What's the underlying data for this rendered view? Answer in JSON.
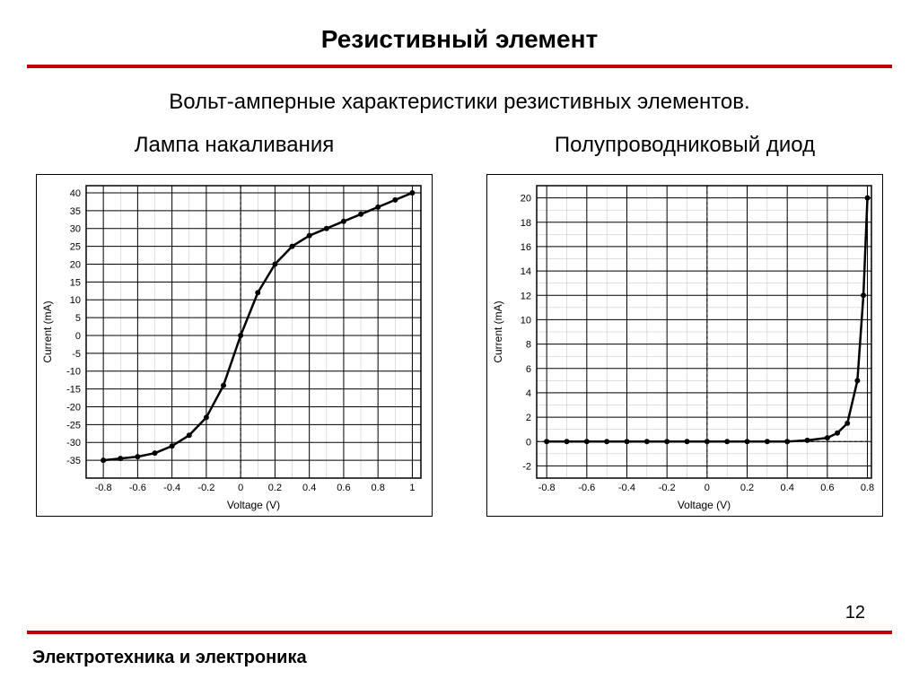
{
  "page": {
    "title": "Резистивный элемент",
    "subtitle": "Вольт-амперные характеристики резистивных элементов.",
    "footer": "Электротехника и электроника",
    "page_number": "12",
    "rule_color": "#c00000"
  },
  "chart_left": {
    "title": "Лампа накаливания",
    "type": "line",
    "xlabel": "Voltage (V)",
    "ylabel": "Current (mA)",
    "xlim": [
      -0.9,
      1.05
    ],
    "ylim": [
      -40,
      42
    ],
    "xtick_major": [
      -0.8,
      -0.6,
      -0.4,
      -0.2,
      0,
      0.2,
      0.4,
      0.6,
      0.8,
      1.0
    ],
    "ytick_major": [
      -35,
      -30,
      -25,
      -20,
      -15,
      -10,
      -5,
      0,
      5,
      10,
      15,
      20,
      25,
      30,
      35,
      40
    ],
    "minor_div_x": 0.1,
    "minor_div_y": 5,
    "grid_color_major": "#000000",
    "grid_color_minor": "#bfbfbf",
    "background_color": "#ffffff",
    "line_color": "#000000",
    "line_width": 2.5,
    "marker_color": "#000000",
    "marker_size": 3,
    "label_fontsize": 12,
    "tick_fontsize": 11,
    "data": [
      {
        "x": -0.8,
        "y": -35
      },
      {
        "x": -0.7,
        "y": -34.5
      },
      {
        "x": -0.6,
        "y": -34
      },
      {
        "x": -0.5,
        "y": -33
      },
      {
        "x": -0.4,
        "y": -31
      },
      {
        "x": -0.3,
        "y": -28
      },
      {
        "x": -0.2,
        "y": -23
      },
      {
        "x": -0.1,
        "y": -14
      },
      {
        "x": 0.0,
        "y": 0
      },
      {
        "x": 0.1,
        "y": 12
      },
      {
        "x": 0.2,
        "y": 20
      },
      {
        "x": 0.3,
        "y": 25
      },
      {
        "x": 0.4,
        "y": 28
      },
      {
        "x": 0.5,
        "y": 30
      },
      {
        "x": 0.6,
        "y": 32
      },
      {
        "x": 0.7,
        "y": 34
      },
      {
        "x": 0.8,
        "y": 36
      },
      {
        "x": 0.9,
        "y": 38
      },
      {
        "x": 1.0,
        "y": 40
      }
    ]
  },
  "chart_right": {
    "title": "Полупроводниковый диод",
    "type": "line",
    "xlabel": "Voltage (V)",
    "ylabel": "Current (mA)",
    "xlim": [
      -0.85,
      0.82
    ],
    "ylim": [
      -3,
      21
    ],
    "xtick_major": [
      -0.8,
      -0.6,
      -0.4,
      -0.2,
      0,
      0.2,
      0.4,
      0.6,
      0.8
    ],
    "ytick_major": [
      -2,
      0,
      2,
      4,
      6,
      8,
      10,
      12,
      14,
      16,
      18,
      20
    ],
    "minor_div_x": 0.1,
    "minor_div_y": 1,
    "grid_color_major": "#000000",
    "grid_color_minor": "#bfbfbf",
    "background_color": "#ffffff",
    "line_color": "#000000",
    "line_width": 2.5,
    "marker_color": "#000000",
    "marker_size": 3,
    "label_fontsize": 12,
    "tick_fontsize": 11,
    "data": [
      {
        "x": -0.8,
        "y": 0
      },
      {
        "x": -0.7,
        "y": 0
      },
      {
        "x": -0.6,
        "y": 0
      },
      {
        "x": -0.5,
        "y": 0
      },
      {
        "x": -0.4,
        "y": 0
      },
      {
        "x": -0.3,
        "y": 0
      },
      {
        "x": -0.2,
        "y": 0
      },
      {
        "x": -0.1,
        "y": 0
      },
      {
        "x": 0.0,
        "y": 0
      },
      {
        "x": 0.1,
        "y": 0
      },
      {
        "x": 0.2,
        "y": 0
      },
      {
        "x": 0.3,
        "y": 0
      },
      {
        "x": 0.4,
        "y": 0
      },
      {
        "x": 0.5,
        "y": 0.1
      },
      {
        "x": 0.6,
        "y": 0.3
      },
      {
        "x": 0.65,
        "y": 0.7
      },
      {
        "x": 0.7,
        "y": 1.5
      },
      {
        "x": 0.75,
        "y": 5
      },
      {
        "x": 0.78,
        "y": 12
      },
      {
        "x": 0.8,
        "y": 20
      }
    ]
  }
}
